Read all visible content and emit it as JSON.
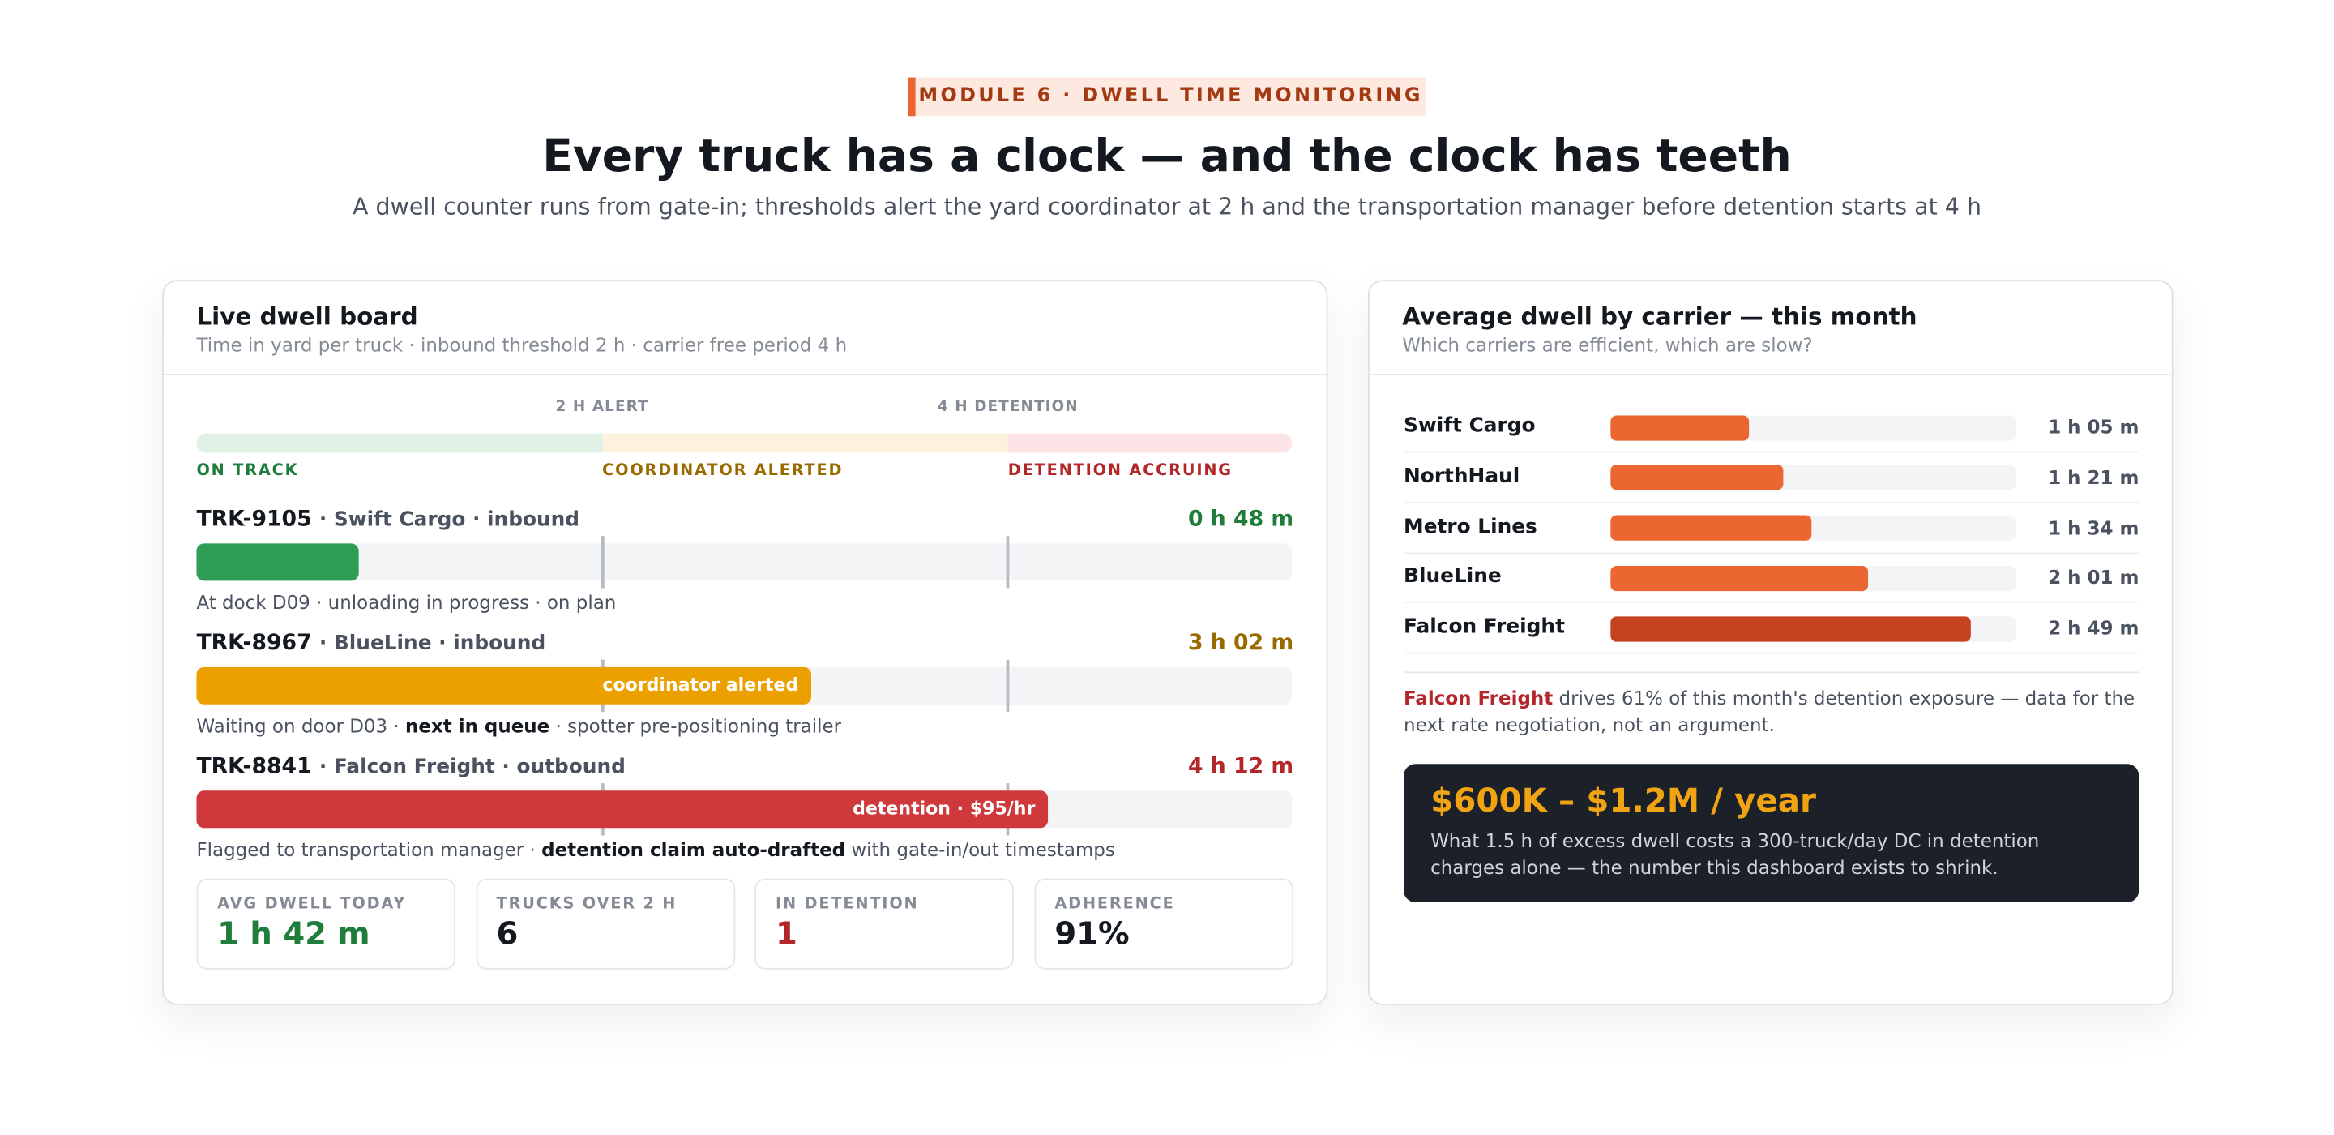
{
  "header": {
    "badge": "MODULE 6 · DWELL TIME MONITORING",
    "title": "Every truck has a clock — and the clock has teeth",
    "subtitle": "A dwell counter runs from gate-in; thresholds alert the yard coordinator at 2 h and the transportation manager before detention starts at 4 h"
  },
  "dwell_board": {
    "title": "Live dwell board",
    "subtitle": "Time in yard per truck · inbound threshold 2 h · carrier free period 4 h",
    "xlim": [
      0,
      324
    ],
    "thresholds": [
      {
        "value": 120,
        "label": "2 H ALERT"
      },
      {
        "value": 240,
        "label": "4 H DETENTION"
      }
    ],
    "zones": [
      {
        "label": "ON TRACK",
        "color": "#e2f1e6",
        "text_color": "#1e7d3a"
      },
      {
        "label": "COORDINATOR ALERTED",
        "color": "#fdf3dc",
        "text_color": "#9a6a00"
      },
      {
        "label": "DETENTION ACCRUING",
        "color": "#fce4e6",
        "text_color": "#b3262a"
      }
    ],
    "trucks": [
      {
        "id": "TRK-9105",
        "details": "· Swift Cargo · inbound",
        "value": 48,
        "value_label": "0 h 48 m",
        "color": "#2e9e57",
        "text_color": "#1e7d3a",
        "note": [
          {
            "text": "At dock D09 · unloading in progress · on plan",
            "strong": false
          }
        ]
      },
      {
        "id": "TRK-8967",
        "details": "· BlueLine · inbound",
        "value": 182,
        "value_label": "3 h 02 m",
        "color": "#eba000",
        "text_color": "#9a6a00",
        "bar_label": "coordinator alerted",
        "note": [
          {
            "text": "Waiting on door D03 · ",
            "strong": false
          },
          {
            "text": "next in queue",
            "strong": true
          },
          {
            "text": " · spotter pre-positioning trailer",
            "strong": false
          }
        ]
      },
      {
        "id": "TRK-8841",
        "details": "· Falcon Freight · outbound",
        "value": 252,
        "value_label": "4 h 12 m",
        "color": "#d0393b",
        "text_color": "#b3262a",
        "bar_label": "detention · $95/hr",
        "note": [
          {
            "text": "Flagged to transportation manager · ",
            "strong": false
          },
          {
            "text": "detention claim auto-drafted",
            "strong": true
          },
          {
            "text": " with gate-in/out timestamps",
            "strong": false
          }
        ]
      }
    ],
    "stats": [
      {
        "label": "AVG DWELL TODAY",
        "value": "1 h 42 m",
        "color": "#1e7d3a"
      },
      {
        "label": "TRUCKS OVER 2 H",
        "value": "6",
        "color": "#14181f"
      },
      {
        "label": "IN DETENTION",
        "value": "1",
        "color": "#b3262a"
      },
      {
        "label": "ADHERENCE",
        "value": "91%",
        "color": "#14181f"
      }
    ]
  },
  "chart_data": {
    "type": "bar",
    "title": "Average dwell by carrier — this month",
    "subtitle": "Which carriers are efficient, which are slow?",
    "categories": [
      "Swift Cargo",
      "NorthHaul",
      "Metro Lines",
      "BlueLine",
      "Falcon Freight"
    ],
    "values": [
      65,
      81,
      94,
      121,
      169
    ],
    "value_labels": [
      "1 h 05 m",
      "1 h 21 m",
      "1 h 34 m",
      "2 h 01 m",
      "2 h 49 m"
    ],
    "colors": [
      "#ec6632",
      "#ec6632",
      "#ec6632",
      "#ec6632",
      "#c4421f"
    ],
    "xlim": [
      0,
      190
    ]
  },
  "insight": {
    "note": [
      {
        "text": "Falcon Freight",
        "color": "#b3262a"
      },
      {
        "text": " drives 61% of this month's detention exposure — data for the next rate negotiation, not an argument."
      }
    ],
    "callout_headline": "$600K – $1.2M / year",
    "callout_text": "What 1.5 h of excess dwell costs a 300-truck/day DC in detention charges alone — the number this dashboard exists to shrink."
  }
}
